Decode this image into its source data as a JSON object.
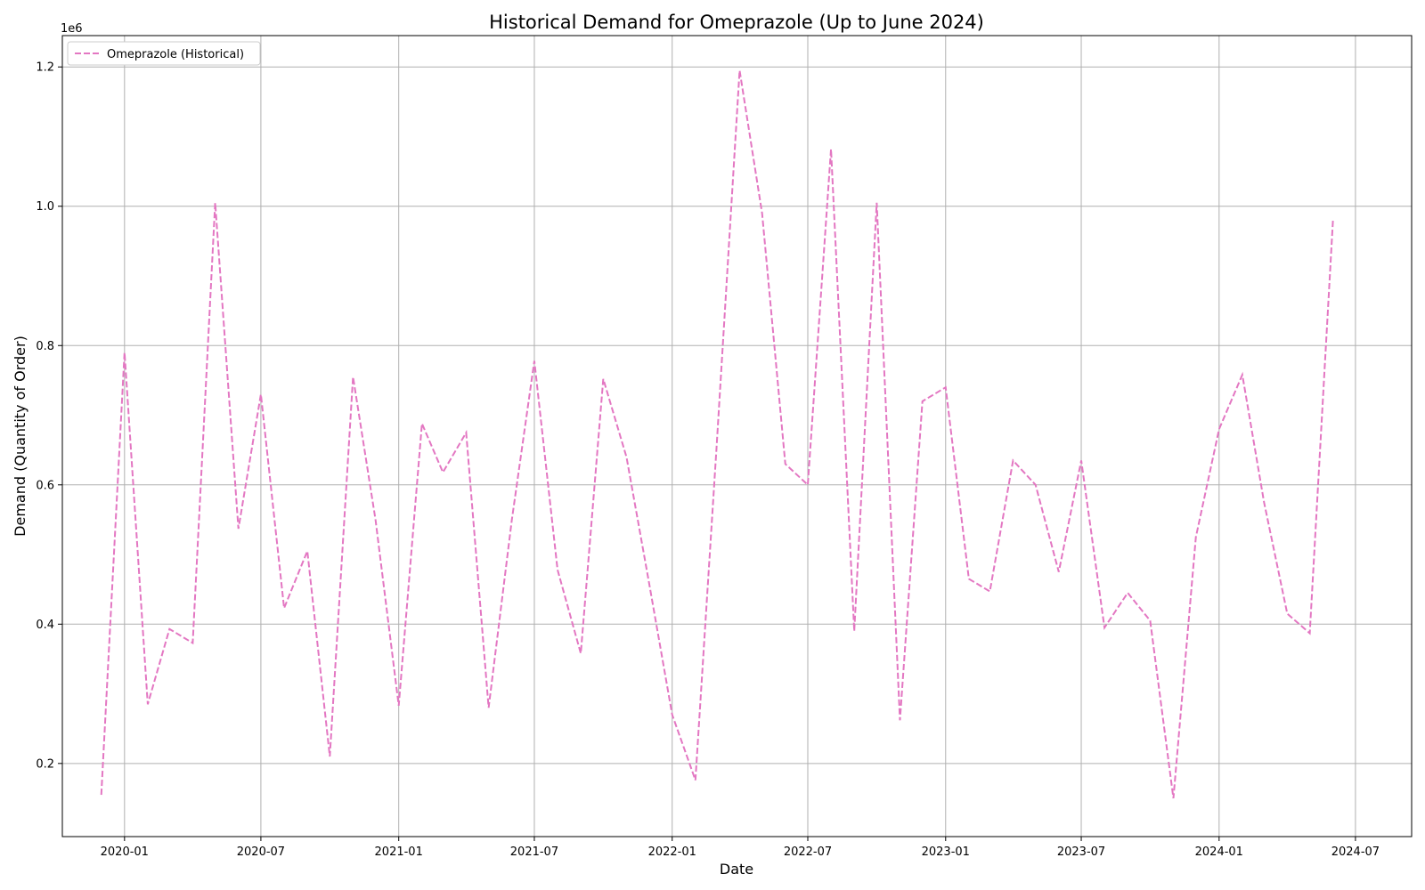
{
  "chart_data": {
    "type": "line",
    "title": "Historical Demand for Omeprazole (Up to June 2024)",
    "xlabel": "Date",
    "ylabel": "Demand (Quantity of Order)",
    "y_offset_label": "1e6",
    "x_ticks": [
      "2020-01",
      "2020-07",
      "2021-01",
      "2021-07",
      "2022-01",
      "2022-07",
      "2023-01",
      "2023-07",
      "2024-01",
      "2024-07"
    ],
    "y_ticks": [
      "0.2",
      "0.4",
      "0.6",
      "0.8",
      "1.0",
      "1.2"
    ],
    "xlim": [
      "2019-10-10",
      "2024-09-14"
    ],
    "ylim": [
      0.095,
      1.245
    ],
    "grid": true,
    "legend_position": "upper-left",
    "series": [
      {
        "name": "Omeprazole (Historical)",
        "color": "#e377c2",
        "line_style": "dashed",
        "x": [
          "2019-12-01",
          "2020-01-01",
          "2020-02-01",
          "2020-03-01",
          "2020-04-01",
          "2020-05-01",
          "2020-06-01",
          "2020-07-01",
          "2020-08-01",
          "2020-09-01",
          "2020-10-01",
          "2020-11-01",
          "2020-12-01",
          "2021-01-01",
          "2021-02-01",
          "2021-03-01",
          "2021-04-01",
          "2021-05-01",
          "2021-06-01",
          "2021-07-01",
          "2021-08-01",
          "2021-09-01",
          "2021-10-01",
          "2021-11-01",
          "2021-12-01",
          "2022-01-01",
          "2022-02-01",
          "2022-03-01",
          "2022-04-01",
          "2022-05-01",
          "2022-06-01",
          "2022-07-01",
          "2022-08-01",
          "2022-09-01",
          "2022-10-01",
          "2022-11-01",
          "2022-12-01",
          "2023-01-01",
          "2023-02-01",
          "2023-03-01",
          "2023-04-01",
          "2023-05-01",
          "2023-06-01",
          "2023-07-01",
          "2023-08-01",
          "2023-09-01",
          "2023-10-01",
          "2023-11-01",
          "2023-12-01",
          "2024-01-01",
          "2024-02-01",
          "2024-03-01",
          "2024-04-01",
          "2024-05-01",
          "2024-06-01"
        ],
        "values": [
          0.155,
          0.79,
          0.285,
          0.393,
          0.373,
          1.005,
          0.537,
          0.73,
          0.423,
          0.505,
          0.21,
          0.755,
          0.55,
          0.283,
          0.688,
          0.618,
          0.675,
          0.28,
          0.55,
          0.778,
          0.478,
          0.358,
          0.752,
          0.64,
          0.46,
          0.27,
          0.176,
          0.65,
          1.195,
          0.99,
          0.63,
          0.6,
          1.082,
          0.39,
          1.005,
          0.262,
          0.72,
          0.74,
          0.465,
          0.447,
          0.635,
          0.6,
          0.475,
          0.635,
          0.395,
          0.445,
          0.405,
          0.15,
          0.525,
          0.68,
          0.758,
          0.575,
          0.415,
          0.387,
          0.98
        ]
      }
    ]
  }
}
